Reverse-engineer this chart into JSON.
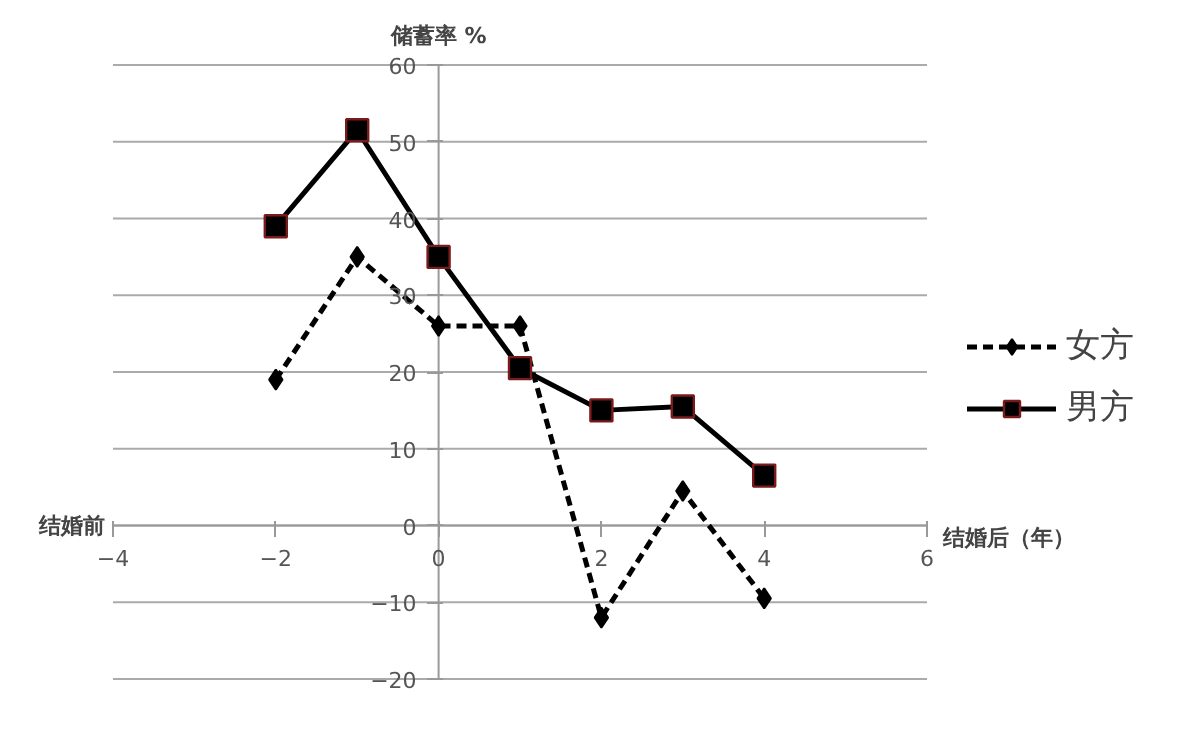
{
  "chart_data": {
    "type": "line",
    "ylabel": "储蓄率 %",
    "xlabel": "结婚后（年）",
    "annotations": [
      "结婚前"
    ],
    "x": [
      -2,
      -1,
      0,
      1,
      2,
      3,
      4
    ],
    "series": [
      {
        "name": "女方",
        "color": "#000000",
        "marker": "diamond",
        "line_style": "dashed",
        "values": [
          19,
          35,
          26,
          26,
          -12,
          4.5,
          -9.5
        ]
      },
      {
        "name": "男方",
        "color": "#000000",
        "marker": "square",
        "line_style": "solid",
        "values": [
          39,
          51.5,
          35,
          20.5,
          15,
          15.5,
          6.5
        ]
      }
    ],
    "xlim": [
      -4,
      6
    ],
    "xticks": [
      -4,
      -2,
      0,
      2,
      4,
      6
    ],
    "ylim": [
      -20,
      60
    ],
    "yticks": [
      -20,
      -10,
      0,
      10,
      20,
      30,
      40,
      50,
      60
    ],
    "grid": "y",
    "legend": "right"
  }
}
